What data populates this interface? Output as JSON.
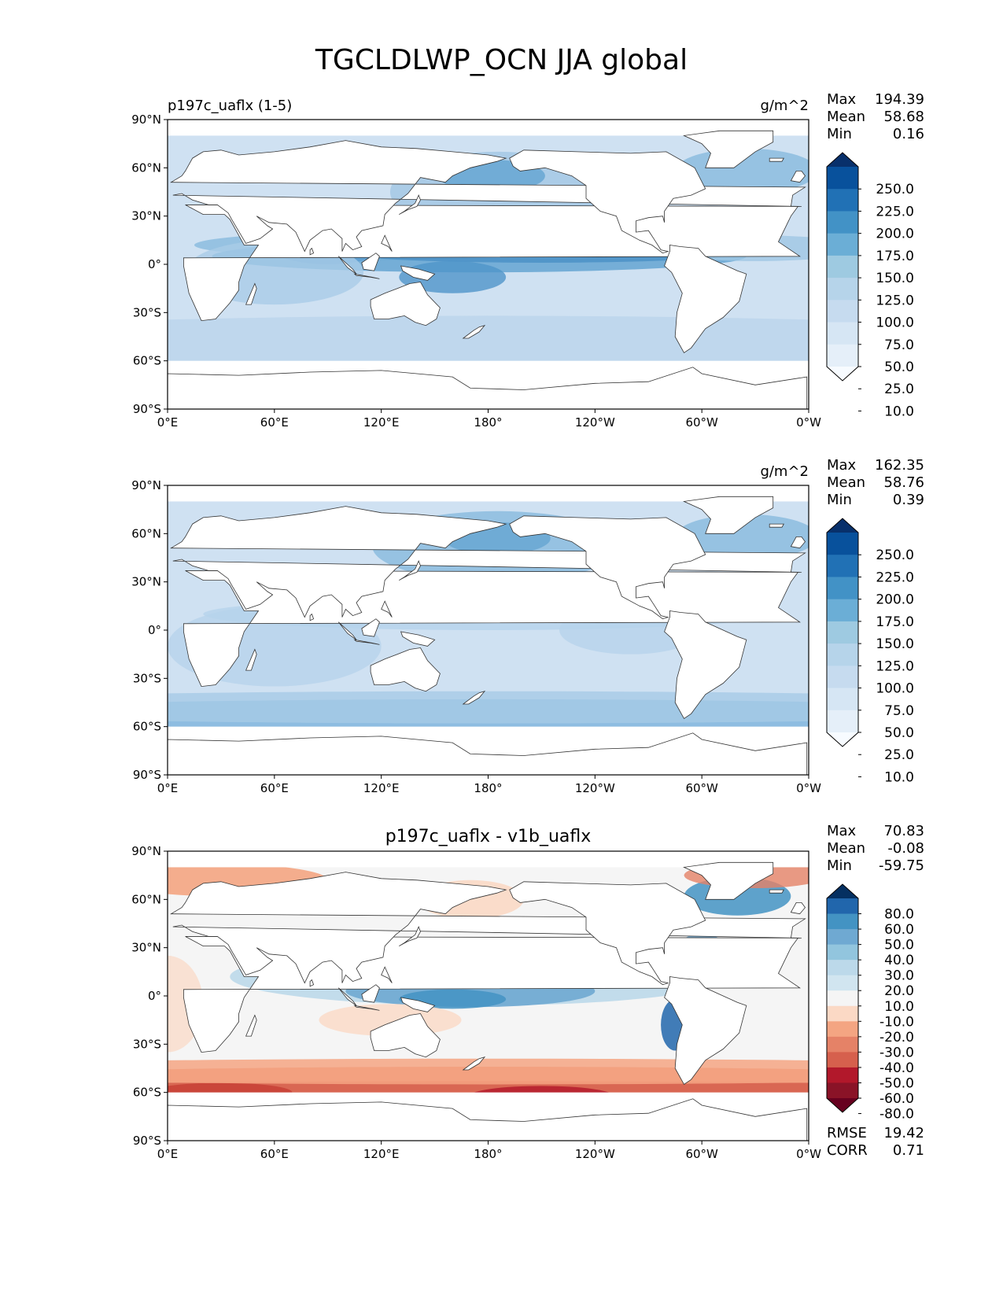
{
  "title": "TGCLDLWP_OCN JJA global",
  "map_axes": {
    "lon_ticks": [
      "0°E",
      "60°E",
      "120°E",
      "180°",
      "120°W",
      "60°W",
      "0°W"
    ],
    "lat_ticks": [
      "90°N",
      "60°N",
      "30°N",
      "0°",
      "30°S",
      "60°S",
      "90°S"
    ]
  },
  "panels": [
    {
      "label": "p197c_uaflx (1-5)",
      "units": "g/m^2",
      "stats": {
        "max_label": "Max",
        "max": "194.39",
        "mean_label": "Mean",
        "mean": "58.68",
        "min_label": "Min",
        "min": "0.16"
      }
    },
    {
      "label": "",
      "units": "g/m^2",
      "stats": {
        "max_label": "Max",
        "max": "162.35",
        "mean_label": "Mean",
        "mean": "58.76",
        "min_label": "Min",
        "min": "0.39"
      }
    },
    {
      "label": "p197c_uaflx - v1b_uaflx",
      "units": "",
      "stats": {
        "max_label": "Max",
        "max": "70.83",
        "mean_label": "Mean",
        "mean": "-0.08",
        "min_label": "Min",
        "min": "-59.75"
      },
      "metrics": {
        "rmse_label": "RMSE",
        "rmse": "19.42",
        "corr_label": "CORR",
        "corr": "0.71"
      }
    }
  ],
  "colorbars": {
    "seq_levels": [
      "250.0",
      "225.0",
      "200.0",
      "175.0",
      "150.0",
      "125.0",
      "100.0",
      "75.0",
      "50.0",
      "25.0",
      "10.0"
    ],
    "seq_colors": [
      "#08306b",
      "#08519c",
      "#2171b5",
      "#4292c6",
      "#6baed6",
      "#9ecae1",
      "#b6d4ea",
      "#c6dbef",
      "#d6e6f4",
      "#e5eff9",
      "#f7fbff"
    ],
    "div_levels": [
      "80.0",
      "60.0",
      "50.0",
      "40.0",
      "30.0",
      "20.0",
      "10.0",
      "-10.0",
      "-20.0",
      "-30.0",
      "-40.0",
      "-50.0",
      "-60.0",
      "-80.0"
    ],
    "div_colors": [
      "#053061",
      "#2166ac",
      "#4393c3",
      "#6fa9d2",
      "#92c5de",
      "#bcd9ea",
      "#d1e5f0",
      "#f5f5f5",
      "#fbd9c5",
      "#f4a582",
      "#e58267",
      "#d6604d",
      "#b2182b",
      "#8a1327",
      "#67001f"
    ]
  }
}
